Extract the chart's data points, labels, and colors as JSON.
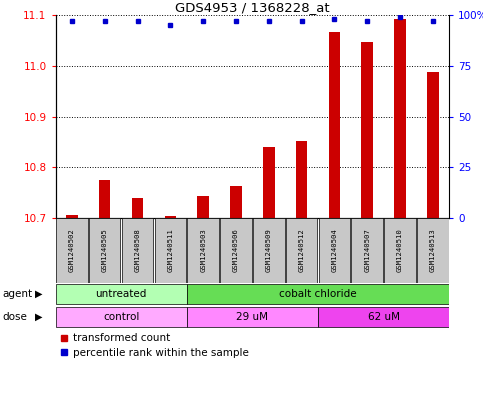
{
  "title": "GDS4953 / 1368228_at",
  "samples": [
    "GSM1240502",
    "GSM1240505",
    "GSM1240508",
    "GSM1240511",
    "GSM1240503",
    "GSM1240506",
    "GSM1240509",
    "GSM1240512",
    "GSM1240504",
    "GSM1240507",
    "GSM1240510",
    "GSM1240513"
  ],
  "red_values": [
    10.706,
    10.775,
    10.738,
    10.703,
    10.743,
    10.762,
    10.84,
    10.852,
    11.068,
    11.048,
    11.092,
    10.988
  ],
  "blue_values": [
    97,
    97,
    97,
    95,
    97,
    97,
    97,
    97,
    98,
    97,
    99,
    97
  ],
  "ylim_left": [
    10.7,
    11.1
  ],
  "ylim_right": [
    0,
    100
  ],
  "yticks_left": [
    10.7,
    10.8,
    10.9,
    11.0,
    11.1
  ],
  "yticks_right": [
    0,
    25,
    50,
    75,
    100
  ],
  "ytick_labels_right": [
    "0",
    "25",
    "50",
    "75",
    "100%"
  ],
  "agent_groups": [
    {
      "label": "untreated",
      "start": 0,
      "end": 4,
      "color": "#b3ffb3"
    },
    {
      "label": "cobalt chloride",
      "start": 4,
      "end": 12,
      "color": "#66dd55"
    }
  ],
  "dose_groups": [
    {
      "label": "control",
      "start": 0,
      "end": 4,
      "color": "#ffaaff"
    },
    {
      "label": "29 uM",
      "start": 4,
      "end": 8,
      "color": "#ff88ff"
    },
    {
      "label": "62 uM",
      "start": 8,
      "end": 12,
      "color": "#ee44ee"
    }
  ],
  "bar_color": "#cc0000",
  "dot_color": "#0000cc",
  "legend_red_label": "transformed count",
  "legend_blue_label": "percentile rank within the sample",
  "bar_width": 0.35,
  "sample_box_color": "#c8c8c8"
}
